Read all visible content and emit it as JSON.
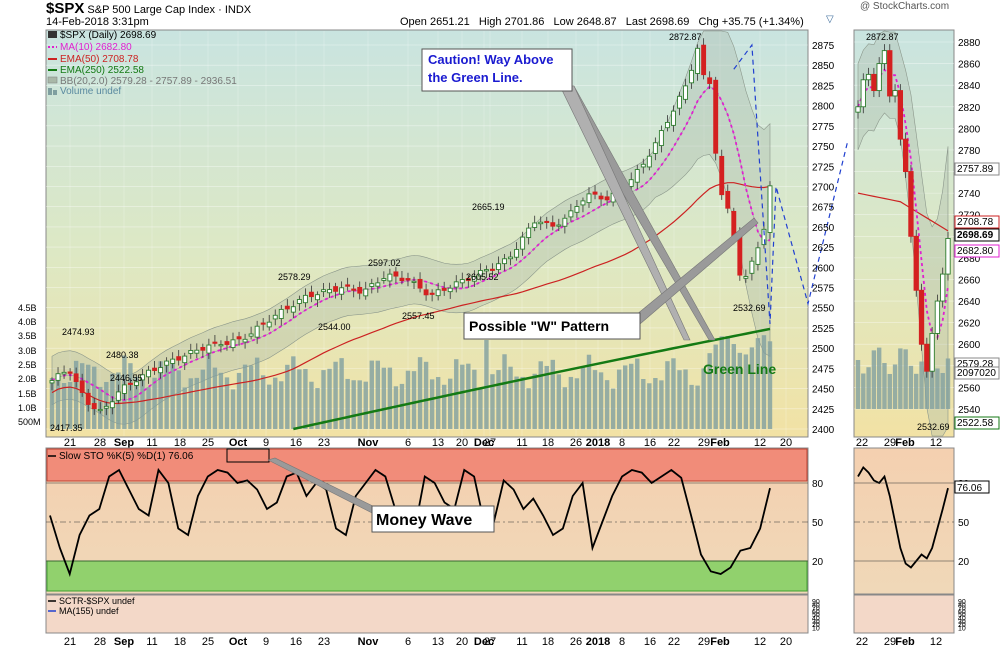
{
  "header": {
    "symbol": "$SPX",
    "name": "S&P 500 Large Cap Index",
    "exchange": "INDX",
    "date": "14-Feb-2018 3:31pm",
    "open_label": "Open",
    "open": "2651.21",
    "high_label": "High",
    "high": "2701.86",
    "low_label": "Low",
    "low": "2648.87",
    "last_label": "Last",
    "last": "2698.69",
    "chg_label": "Chg",
    "chg": "+35.75 (+1.34%)",
    "watermark": "@ StockCharts.com"
  },
  "legend": {
    "price": "$SPX (Daily) 2698.69",
    "ma10": "MA(10) 2682.80",
    "ema50": "EMA(50) 2708.78",
    "ema250": "EMA(250) 2522.58",
    "bb": "BB(20,2.0) 2579.28 - 2757.89 - 2936.51",
    "volume": "Volume undef"
  },
  "annotations": {
    "caution": "Caution! Way Above\nthe Green Line.",
    "w_pattern": "Possible \"W\" Pattern",
    "green_line": "Green Line",
    "money_wave": "Money Wave"
  },
  "stoch_legend": "Slow STO %K(5) %D(1) 76.06",
  "stoch_value_box": "76.06",
  "sctr_legend": "SCTR-$SPX undef",
  "sctr_ma": "MA(155) undef",
  "colors": {
    "up": "#2e7d2e",
    "down": "#d42020",
    "ma10": "#e020d0",
    "ema50": "#cc2222",
    "ema250": "#147a14",
    "volume": "#7f9fa0",
    "bg_top": "#c9e4e0",
    "bg_bottom": "#f0e0a0",
    "stoch_band_high": "#f08070",
    "stoch_band_low": "#80d060"
  },
  "chart_data": {
    "type": "candlestick",
    "main": {
      "y_ticks": [
        "2875",
        "2850",
        "2825",
        "2800",
        "2775",
        "2750",
        "2725",
        "2700",
        "2675",
        "2650",
        "2625",
        "2600",
        "2575",
        "2550",
        "2525",
        "2500",
        "2475",
        "2450",
        "2425",
        "2400"
      ],
      "volume_ticks": [
        "4.5B",
        "4.0B",
        "3.5B",
        "3.0B",
        "2.5B",
        "2.0B",
        "1.5B",
        "1.0B",
        "500M"
      ],
      "x_ticks": [
        "21",
        "28",
        "Sep",
        "11",
        "18",
        "25",
        "Oct",
        "9",
        "16",
        "23",
        "Nov",
        "6",
        "13",
        "20",
        "27",
        "Dec",
        "11",
        "18",
        "26",
        "2018",
        "8",
        "16",
        "22",
        "29",
        "Feb",
        "12",
        "20"
      ],
      "bold_ticks": [
        "Sep",
        "Oct",
        "Nov",
        "Dec",
        "2018",
        "Feb"
      ],
      "price_labels": [
        "2474.93",
        "2480.38",
        "2446.55",
        "2417.35",
        "2578.29",
        "2597.02",
        "2544.00",
        "2557.45",
        "2605.52",
        "2665.19",
        "2872.87",
        "2532.69"
      ],
      "right_labels": [
        "2708.78",
        "2698.69",
        "2682.80",
        "2579.28",
        "2522.58"
      ],
      "last": 2698.69,
      "ma10": 2682.8,
      "ema50": 2708.78,
      "ema250": 2522.58,
      "bb": [
        2579.28,
        2757.89,
        2936.51
      ]
    },
    "zoom": {
      "y_ticks": [
        "2880",
        "2860",
        "2840",
        "2820",
        "2800",
        "2780",
        "2760",
        "2740",
        "2720",
        "2700",
        "2680",
        "2660",
        "2640",
        "2620",
        "2600",
        "2580",
        "2560",
        "2540"
      ],
      "x_ticks": [
        "22",
        "29",
        "Feb",
        "12"
      ],
      "high_label": "2872.87",
      "low_label": "2532.69",
      "right_labels": [
        "2757.89",
        "2708.78",
        "2698.69",
        "2682.80",
        "2579.28",
        "2097020",
        "2522.58"
      ]
    },
    "stoch": {
      "y_ticks": [
        "80",
        "50",
        "20"
      ],
      "value": 76.06,
      "overbought": 80,
      "oversold": 20,
      "x_ticks": [
        "21",
        "28",
        "Sep",
        "11",
        "18",
        "25",
        "Oct",
        "9",
        "16",
        "23",
        "Nov",
        "6",
        "13",
        "20",
        "27",
        "Dec",
        "11",
        "18",
        "26",
        "2018",
        "8",
        "16",
        "22",
        "29",
        "Feb",
        "12",
        "20"
      ]
    },
    "sctr": {
      "y_ticks": [
        "90",
        "80",
        "70",
        "60",
        "50",
        "40",
        "30",
        "20",
        "10"
      ]
    }
  }
}
